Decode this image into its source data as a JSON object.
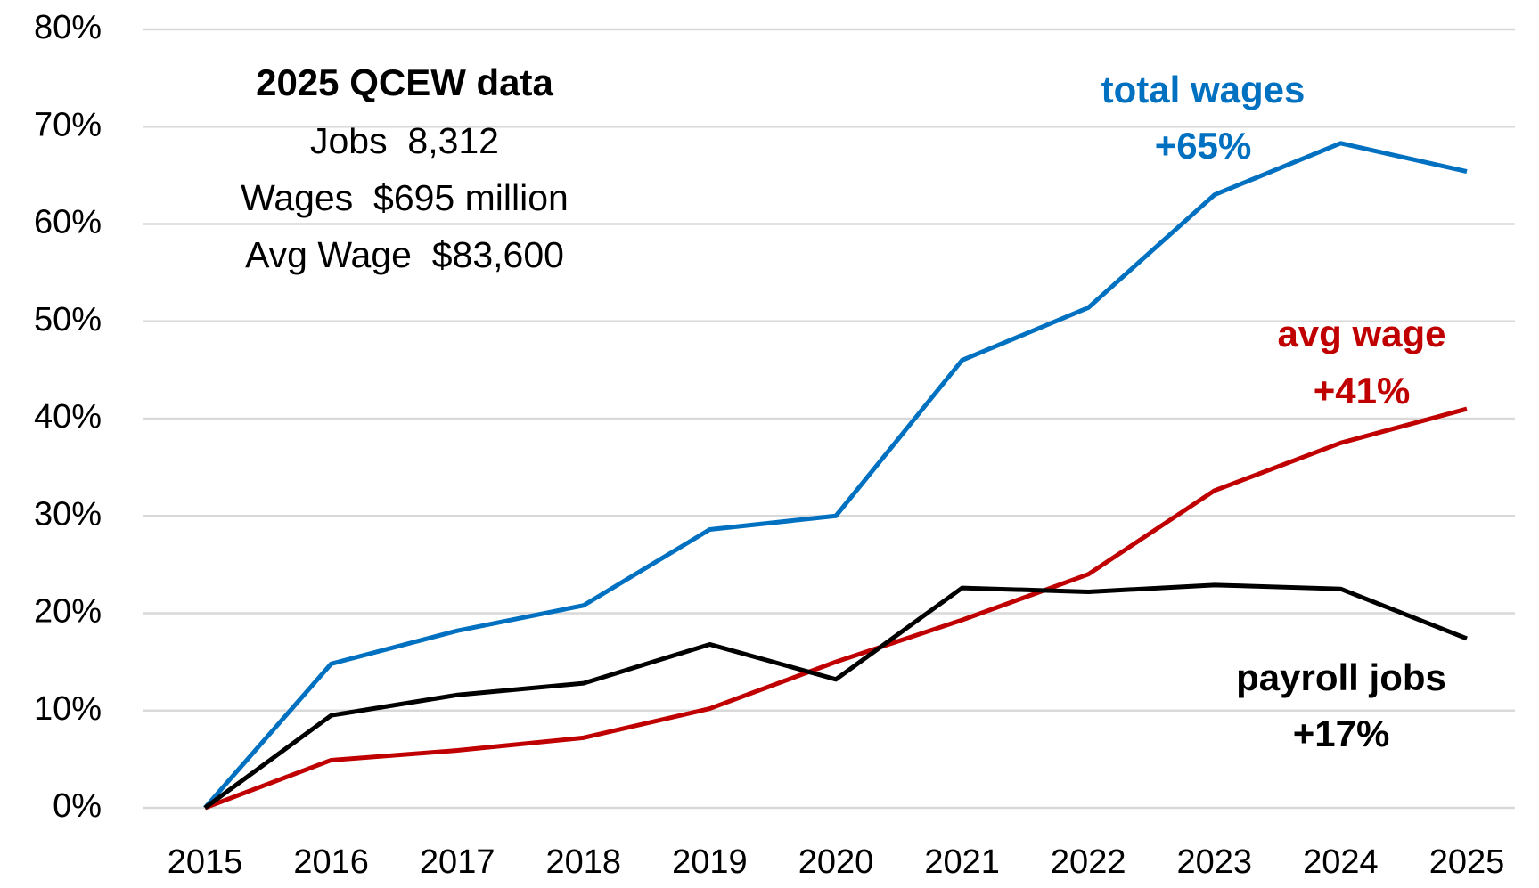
{
  "chart_data": {
    "type": "line",
    "categories": [
      "2015",
      "2016",
      "2017",
      "2018",
      "2019",
      "2020",
      "2021",
      "2022",
      "2023",
      "2024",
      "2025"
    ],
    "series": [
      {
        "name": "total wages",
        "label": "+65%",
        "color": "#0070c0",
        "values": [
          0,
          14.8,
          18.2,
          20.8,
          28.6,
          30.0,
          46.0,
          51.4,
          63.0,
          68.3,
          65.4
        ]
      },
      {
        "name": "avg wage",
        "label": "+41%",
        "color": "#c00000",
        "values": [
          0,
          4.9,
          5.9,
          7.2,
          10.2,
          15.0,
          19.3,
          24.0,
          32.6,
          37.5,
          41.0
        ]
      },
      {
        "name": "payroll jobs",
        "label": "+17%",
        "color": "#000000",
        "values": [
          0,
          9.5,
          11.6,
          12.8,
          16.8,
          13.2,
          22.6,
          22.2,
          22.9,
          22.5,
          17.4
        ]
      }
    ],
    "annotations": [
      "2025 QCEW data",
      "Jobs  8,312",
      "Wages  $695 million",
      "Avg Wage  $83,600"
    ],
    "ylim": [
      0,
      80
    ],
    "yticks": [
      {
        "value": 0,
        "label": "0%"
      },
      {
        "value": 10,
        "label": "10%"
      },
      {
        "value": 20,
        "label": "20%"
      },
      {
        "value": 30,
        "label": "30%"
      },
      {
        "value": 40,
        "label": "40%"
      },
      {
        "value": 50,
        "label": "50%"
      },
      {
        "value": 60,
        "label": "60%"
      },
      {
        "value": 70,
        "label": "70%"
      },
      {
        "value": 80,
        "label": "80%"
      }
    ],
    "grid": true
  }
}
